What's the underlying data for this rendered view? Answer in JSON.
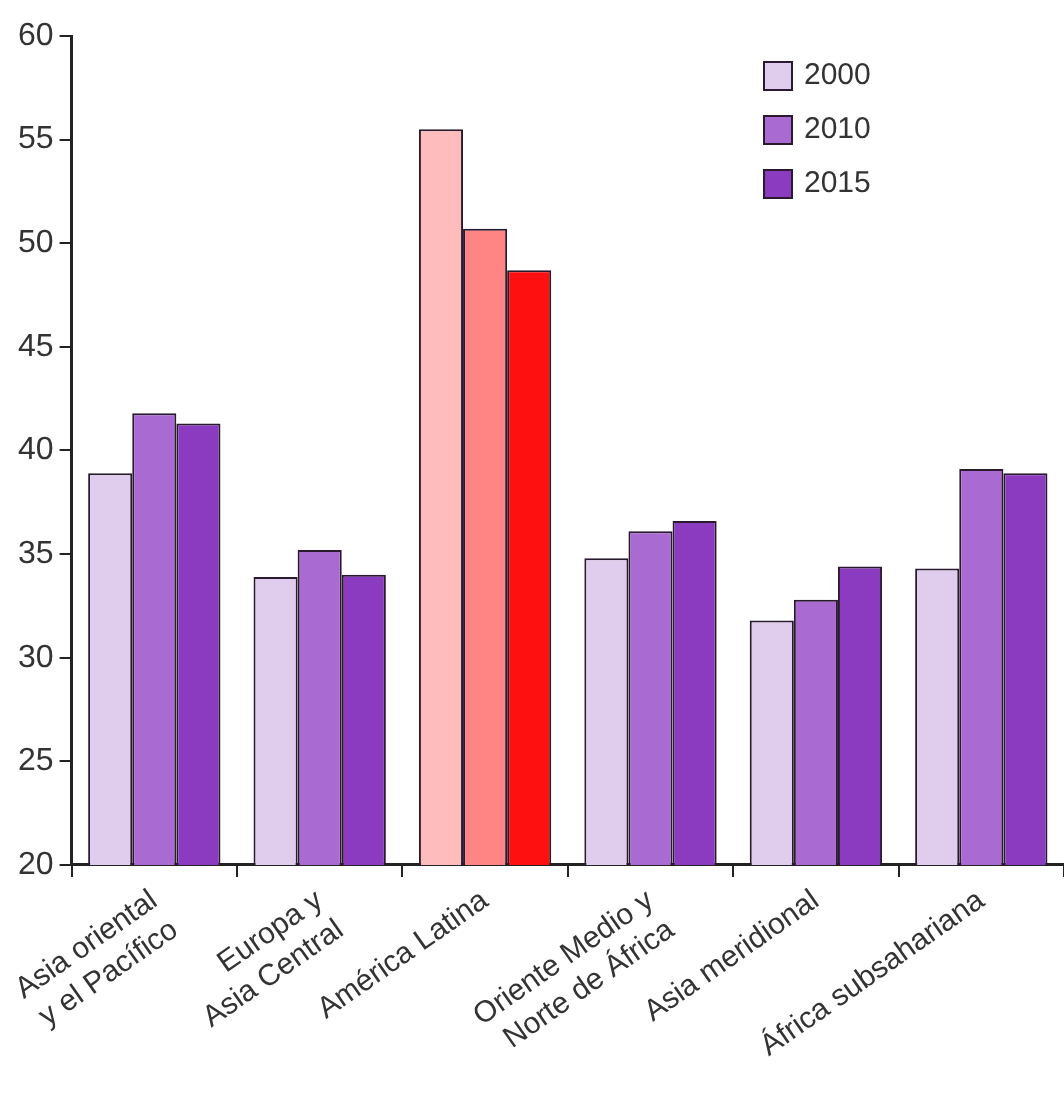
{
  "chart_data": {
    "type": "bar",
    "categories": [
      "Asia oriental\ny el Pacífico",
      "Europa y\nAsia Central",
      "América Latina",
      "Oriente Medio y\nNorte de África",
      "Asia meridional",
      "África subsahariana"
    ],
    "series": [
      {
        "name": "2000",
        "color": "#e0cdee",
        "colors": [
          "#e0cdee",
          "#e0cdee",
          "#ffbcbc",
          "#e0cdee",
          "#e0cdee",
          "#e0cdee"
        ],
        "values": [
          38.9,
          33.9,
          55.5,
          34.8,
          31.8,
          34.3
        ]
      },
      {
        "name": "2010",
        "color": "#a96bd1",
        "colors": [
          "#a96bd1",
          "#a96bd1",
          "#ff8585",
          "#a96bd1",
          "#a96bd1",
          "#a96bd1"
        ],
        "values": [
          41.8,
          35.2,
          50.7,
          36.1,
          32.8,
          39.1
        ]
      },
      {
        "name": "2015",
        "color": "#8a3bbf",
        "colors": [
          "#8a3bbf",
          "#8a3bbf",
          "#ff1010",
          "#8a3bbf",
          "#8a3bbf",
          "#8a3bbf"
        ],
        "values": [
          41.3,
          34.0,
          48.7,
          36.6,
          34.4,
          38.9
        ]
      }
    ],
    "ylim": [
      20,
      60
    ],
    "yticks": [
      20,
      25,
      30,
      35,
      40,
      45,
      50,
      55,
      60
    ],
    "grid": false,
    "legend": "top right"
  }
}
